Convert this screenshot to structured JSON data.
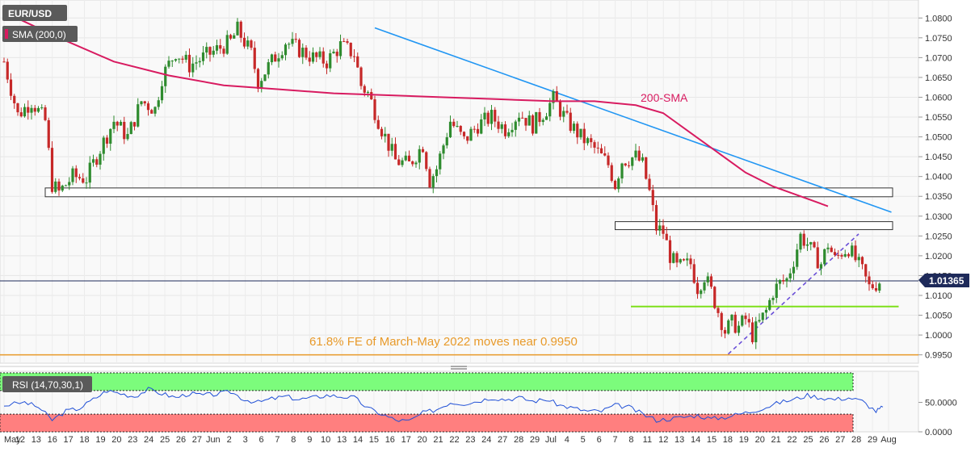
{
  "labels": {
    "symbol": "EUR/USD",
    "sma_indicator": "SMA (200,0)",
    "rsi_indicator": "RSI (14,70,30,1)",
    "sma_annotation": "200-SMA",
    "fe_annotation": "61.8% FE of March-May 2022 moves near 0.9950",
    "current_price": "1.01365"
  },
  "colors": {
    "sma": "#d81b60",
    "downtrend": "#2196f3",
    "support_trend": "#6a4fd8",
    "green_support": "#7ee01a",
    "fe_line": "#e89a2a",
    "candle_up": "#2e8b2e",
    "candle_down": "#c62828",
    "rsi_line": "#1f4fd6",
    "rsi_upper_zone": "#7cfc7c",
    "rsi_lower_zone": "#ff7f7f"
  },
  "chart_data": {
    "type": "candlestick",
    "title": "EUR/USD",
    "x_tick_labels": [
      "May",
      "12",
      "13",
      "16",
      "17",
      "18",
      "19",
      "20",
      "23",
      "24",
      "25",
      "26",
      "27",
      "Jun",
      "2",
      "3",
      "6",
      "7",
      "8",
      "9",
      "10",
      "13",
      "14",
      "15",
      "16",
      "17",
      "20",
      "21",
      "22",
      "23",
      "24",
      "27",
      "28",
      "29",
      "Jul",
      "4",
      "5",
      "6",
      "7",
      "8",
      "11",
      "12",
      "13",
      "14",
      "15",
      "18",
      "19",
      "20",
      "21",
      "22",
      "25",
      "26",
      "27",
      "28",
      "29",
      "Aug"
    ],
    "price_axis": {
      "ylim": [
        0.9935,
        1.0825
      ],
      "ticks": [
        "1.0800",
        "1.0750",
        "1.0700",
        "1.0650",
        "1.0600",
        "1.0550",
        "1.0500",
        "1.0450",
        "1.0400",
        "1.0350",
        "1.0300",
        "1.0250",
        "1.0200",
        "1.0150",
        "1.0100",
        "1.0050",
        "1.0000",
        "0.9950"
      ]
    },
    "rsi_axis": {
      "ylim": [
        0,
        100
      ],
      "ticks": [
        "50.0000",
        "0.0000"
      ],
      "overbought": 70,
      "oversold": 30
    },
    "last_price": 1.01365,
    "price_path": [
      [
        0,
        1.069
      ],
      [
        2,
        1.0555
      ],
      [
        4,
        1.059
      ],
      [
        6,
        1.054
      ],
      [
        7,
        1.038
      ],
      [
        8,
        1.036
      ],
      [
        10,
        1.04
      ],
      [
        12,
        1.0395
      ],
      [
        14,
        1.047
      ],
      [
        16,
        1.054
      ],
      [
        18,
        1.05
      ],
      [
        20,
        1.059
      ],
      [
        22,
        1.057
      ],
      [
        23,
        1.065
      ],
      [
        25,
        1.0715
      ],
      [
        27,
        1.068
      ],
      [
        29,
        1.07
      ],
      [
        31,
        1.072
      ],
      [
        33,
        1.074
      ],
      [
        34,
        1.077
      ],
      [
        36,
        1.071
      ],
      [
        37,
        1.064
      ],
      [
        39,
        1.069
      ],
      [
        41,
        1.074
      ],
      [
        43,
        1.072
      ],
      [
        45,
        1.07
      ],
      [
        47,
        1.069
      ],
      [
        49,
        1.073
      ],
      [
        51,
        1.071
      ],
      [
        52,
        1.063
      ],
      [
        53,
        1.061
      ],
      [
        55,
        1.052
      ],
      [
        57,
        1.044
      ],
      [
        59,
        1.043
      ],
      [
        61,
        1.048
      ],
      [
        62,
        1.039
      ],
      [
        63,
        1.042
      ],
      [
        65,
        1.054
      ],
      [
        67,
        1.049
      ],
      [
        69,
        1.053
      ],
      [
        71,
        1.055
      ],
      [
        73,
        1.052
      ],
      [
        75,
        1.056
      ],
      [
        77,
        1.053
      ],
      [
        79,
        1.057
      ],
      [
        80,
        1.0595
      ],
      [
        82,
        1.054
      ],
      [
        84,
        1.05
      ],
      [
        86,
        1.047
      ],
      [
        88,
        1.043
      ],
      [
        89,
        1.038
      ],
      [
        90,
        1.044
      ],
      [
        92,
        1.045
      ],
      [
        93,
        1.043
      ],
      [
        94,
        1.036
      ],
      [
        95,
        1.027
      ],
      [
        96,
        1.026
      ],
      [
        97,
        1.02
      ],
      [
        98,
        1.017
      ],
      [
        100,
        1.018
      ],
      [
        101,
        1.012
      ],
      [
        102,
        1.015
      ],
      [
        103,
        1.011
      ],
      [
        104,
        1.006
      ],
      [
        105,
        1.001
      ],
      [
        106,
        1.003
      ],
      [
        107,
        1.002
      ],
      [
        108,
        1.004
      ],
      [
        109,
        1.0
      ],
      [
        110,
        1.003
      ],
      [
        111,
        1.006
      ],
      [
        112,
        1.011
      ],
      [
        113,
        1.013
      ],
      [
        114,
        1.014
      ],
      [
        115,
        1.019
      ],
      [
        116,
        1.025
      ],
      [
        117,
        1.023
      ],
      [
        118,
        1.02
      ],
      [
        119,
        1.018
      ],
      [
        120,
        1.023
      ],
      [
        121,
        1.019
      ],
      [
        122,
        1.021
      ],
      [
        123,
        1.022
      ],
      [
        124,
        1.019
      ],
      [
        125,
        1.016
      ],
      [
        126,
        1.012
      ],
      [
        127,
        1.013
      ],
      [
        127.5,
        1.01365
      ]
    ],
    "sma_200_path": [
      [
        0,
        1.0815
      ],
      [
        8,
        1.075
      ],
      [
        16,
        1.069
      ],
      [
        24,
        1.0655
      ],
      [
        32,
        1.063
      ],
      [
        40,
        1.062
      ],
      [
        48,
        1.061
      ],
      [
        56,
        1.0605
      ],
      [
        64,
        1.06
      ],
      [
        72,
        1.0595
      ],
      [
        80,
        1.059
      ],
      [
        86,
        1.059
      ],
      [
        92,
        1.058
      ],
      [
        96,
        1.056
      ],
      [
        100,
        1.051
      ],
      [
        104,
        1.046
      ],
      [
        108,
        1.041
      ],
      [
        112,
        1.0375
      ],
      [
        116,
        1.035
      ],
      [
        120,
        1.0325
      ]
    ],
    "downtrend_line": [
      [
        54,
        1.0775
      ],
      [
        121,
        1.031
      ]
    ],
    "support_trend_line": [
      [
        109,
        0.9952
      ],
      [
        128,
        1.0255
      ]
    ],
    "resistance_zone_1": {
      "from": 6,
      "to": 137,
      "y_low": 1.0355,
      "y_high": 1.0365
    },
    "resistance_zone_2": {
      "from": 89,
      "to": 136,
      "y_low": 1.0272,
      "y_high": 1.028
    },
    "green_support_line": {
      "from": 96,
      "to": 135,
      "y": 1.0072
    },
    "fe_level": 0.995,
    "rsi_path": [
      [
        0,
        45
      ],
      [
        3,
        50
      ],
      [
        5,
        42
      ],
      [
        7,
        20
      ],
      [
        9,
        35
      ],
      [
        11,
        40
      ],
      [
        13,
        55
      ],
      [
        15,
        70
      ],
      [
        17,
        65
      ],
      [
        19,
        60
      ],
      [
        21,
        72
      ],
      [
        23,
        65
      ],
      [
        25,
        58
      ],
      [
        27,
        65
      ],
      [
        29,
        62
      ],
      [
        31,
        64
      ],
      [
        33,
        68
      ],
      [
        35,
        55
      ],
      [
        37,
        50
      ],
      [
        39,
        56
      ],
      [
        41,
        60
      ],
      [
        43,
        55
      ],
      [
        45,
        58
      ],
      [
        47,
        62
      ],
      [
        49,
        60
      ],
      [
        51,
        58
      ],
      [
        53,
        40
      ],
      [
        55,
        30
      ],
      [
        57,
        20
      ],
      [
        59,
        18
      ],
      [
        61,
        32
      ],
      [
        63,
        38
      ],
      [
        65,
        50
      ],
      [
        67,
        48
      ],
      [
        69,
        52
      ],
      [
        71,
        58
      ],
      [
        73,
        55
      ],
      [
        75,
        58
      ],
      [
        77,
        52
      ],
      [
        79,
        55
      ],
      [
        81,
        45
      ],
      [
        83,
        40
      ],
      [
        85,
        35
      ],
      [
        87,
        35
      ],
      [
        89,
        45
      ],
      [
        91,
        42
      ],
      [
        93,
        30
      ],
      [
        95,
        20
      ],
      [
        97,
        22
      ],
      [
        99,
        25
      ],
      [
        101,
        28
      ],
      [
        103,
        22
      ],
      [
        105,
        25
      ],
      [
        107,
        30
      ],
      [
        109,
        35
      ],
      [
        111,
        42
      ],
      [
        113,
        50
      ],
      [
        115,
        55
      ],
      [
        117,
        62
      ],
      [
        119,
        58
      ],
      [
        121,
        55
      ],
      [
        123,
        58
      ],
      [
        125,
        52
      ],
      [
        127,
        35
      ],
      [
        128,
        42
      ]
    ]
  }
}
